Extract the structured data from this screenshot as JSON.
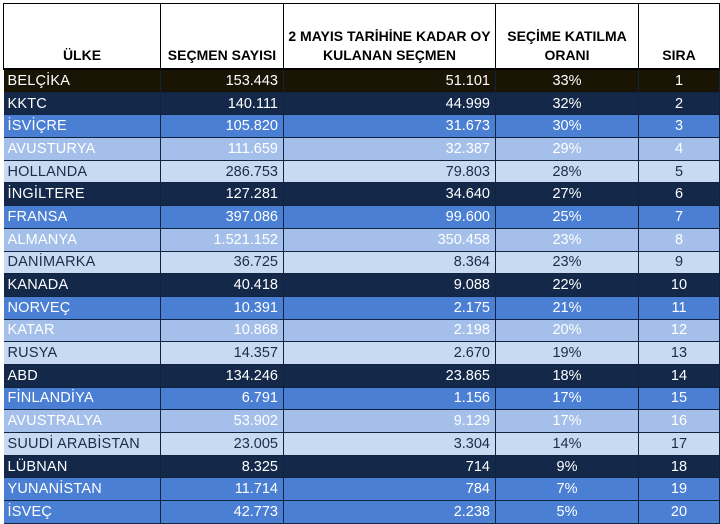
{
  "table": {
    "headers": [
      "ÜLKE",
      "SEÇMEN SAYISI",
      "2 MAYIS TARİHİNE KADAR OY KULANAN SEÇMEN",
      "SEÇİME KATILMA ORANI",
      "SIRA"
    ],
    "band_colors": {
      "b0": "#1a1405",
      "b1": "#14284a",
      "b2": "#4a7fd3",
      "b3": "#a4c0ea",
      "b4": "#c8d9f2"
    },
    "rows": [
      {
        "country": "BELÇİKA",
        "voters": "153.443",
        "voted": "51.101",
        "rate": "33%",
        "rank": "1",
        "band": "b0"
      },
      {
        "country": "KKTC",
        "voters": "140.111",
        "voted": "44.999",
        "rate": "32%",
        "rank": "2",
        "band": "b1"
      },
      {
        "country": "İSVİÇRE",
        "voters": "105.820",
        "voted": "31.673",
        "rate": "30%",
        "rank": "3",
        "band": "b2"
      },
      {
        "country": "AVUSTURYA",
        "voters": "111.659",
        "voted": "32.387",
        "rate": "29%",
        "rank": "4",
        "band": "b3"
      },
      {
        "country": "HOLLANDA",
        "voters": "286.753",
        "voted": "79.803",
        "rate": "28%",
        "rank": "5",
        "band": "b4"
      },
      {
        "country": "İNGİLTERE",
        "voters": "127.281",
        "voted": "34.640",
        "rate": "27%",
        "rank": "6",
        "band": "b1"
      },
      {
        "country": "FRANSA",
        "voters": "397.086",
        "voted": "99.600",
        "rate": "25%",
        "rank": "7",
        "band": "b2"
      },
      {
        "country": "ALMANYA",
        "voters": "1.521.152",
        "voted": "350.458",
        "rate": "23%",
        "rank": "8",
        "band": "b3"
      },
      {
        "country": "DANİMARKA",
        "voters": "36.725",
        "voted": "8.364",
        "rate": "23%",
        "rank": "9",
        "band": "b4"
      },
      {
        "country": "KANADA",
        "voters": "40.418",
        "voted": "9.088",
        "rate": "22%",
        "rank": "10",
        "band": "b1"
      },
      {
        "country": "NORVEÇ",
        "voters": "10.391",
        "voted": "2.175",
        "rate": "21%",
        "rank": "11",
        "band": "b2"
      },
      {
        "country": "KATAR",
        "voters": "10.868",
        "voted": "2.198",
        "rate": "20%",
        "rank": "12",
        "band": "b3"
      },
      {
        "country": "RUSYA",
        "voters": "14.357",
        "voted": "2.670",
        "rate": "19%",
        "rank": "13",
        "band": "b4"
      },
      {
        "country": "ABD",
        "voters": "134.246",
        "voted": "23.865",
        "rate": "18%",
        "rank": "14",
        "band": "b1"
      },
      {
        "country": "FİNLANDİYA",
        "voters": "6.791",
        "voted": "1.156",
        "rate": "17%",
        "rank": "15",
        "band": "b2"
      },
      {
        "country": "AVUSTRALYA",
        "voters": "53.902",
        "voted": "9.129",
        "rate": "17%",
        "rank": "16",
        "band": "b3"
      },
      {
        "country": "SUUDİ ARABİSTAN",
        "voters": "23.005",
        "voted": "3.304",
        "rate": "14%",
        "rank": "17",
        "band": "b4"
      },
      {
        "country": "LÜBNAN",
        "voters": "8.325",
        "voted": "714",
        "rate": "9%",
        "rank": "18",
        "band": "b1"
      },
      {
        "country": "YUNANİSTAN",
        "voters": "11.714",
        "voted": "784",
        "rate": "7%",
        "rank": "19",
        "band": "b2"
      },
      {
        "country": "İSVEÇ",
        "voters": "42.773",
        "voted": "2.238",
        "rate": "5%",
        "rank": "20",
        "band": "b2"
      }
    ]
  }
}
